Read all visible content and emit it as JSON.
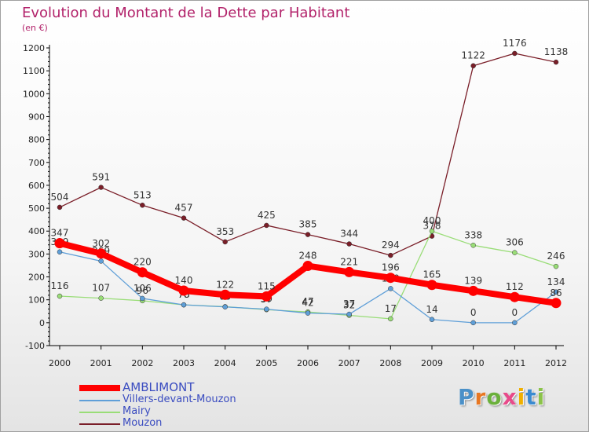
{
  "title": "Evolution du Montant de la Dette par Habitant",
  "subtitle": "(en €)",
  "logo": {
    "text": "Proxiti",
    "letters": [
      "P",
      "r",
      "o",
      "x",
      "i",
      "t",
      "i"
    ],
    "colors": [
      "#4a90c8",
      "#e87722",
      "#6bb03c",
      "#e84a8a",
      "#f0b000",
      "#3a8ad0",
      "#8bc34a"
    ]
  },
  "chart_data": {
    "type": "line",
    "title": "Evolution du Montant de la Dette par Habitant",
    "ylabel": "(en €)",
    "xlabel": "",
    "x": [
      "2000",
      "2001",
      "2002",
      "2003",
      "2004",
      "2005",
      "2006",
      "2007",
      "2008",
      "2009",
      "2010",
      "2011",
      "2012"
    ],
    "ylim": [
      -100,
      1200
    ],
    "yticks": [
      -100,
      0,
      100,
      200,
      300,
      400,
      500,
      600,
      700,
      800,
      900,
      1000,
      1100,
      1200
    ],
    "grid": false,
    "legend_position": "bottom-left",
    "series": [
      {
        "name": "Mouzon",
        "color": "#7a1e28",
        "values": [
          504,
          591,
          513,
          457,
          353,
          425,
          385,
          344,
          294,
          378,
          1122,
          1176,
          1138
        ]
      },
      {
        "name": "Mairy",
        "color": "#99dd77",
        "values": [
          116,
          107,
          96,
          78,
          70,
          57,
          47,
          32,
          17,
          400,
          338,
          306,
          246
        ]
      },
      {
        "name": "Villers-devant-Mouzon",
        "color": "#5f9fd8",
        "values": [
          309,
          269,
          106,
          78,
          69,
          59,
          42,
          37,
          149,
          14,
          0,
          0,
          134
        ]
      },
      {
        "name": "AMBLIMONT",
        "color": "#ff0000",
        "values": [
          347,
          302,
          220,
          140,
          122,
          115,
          248,
          221,
          196,
          165,
          139,
          112,
          86
        ]
      }
    ],
    "legend_order": [
      "AMBLIMONT",
      "Villers-devant-Mouzon",
      "Mairy",
      "Mouzon"
    ]
  }
}
